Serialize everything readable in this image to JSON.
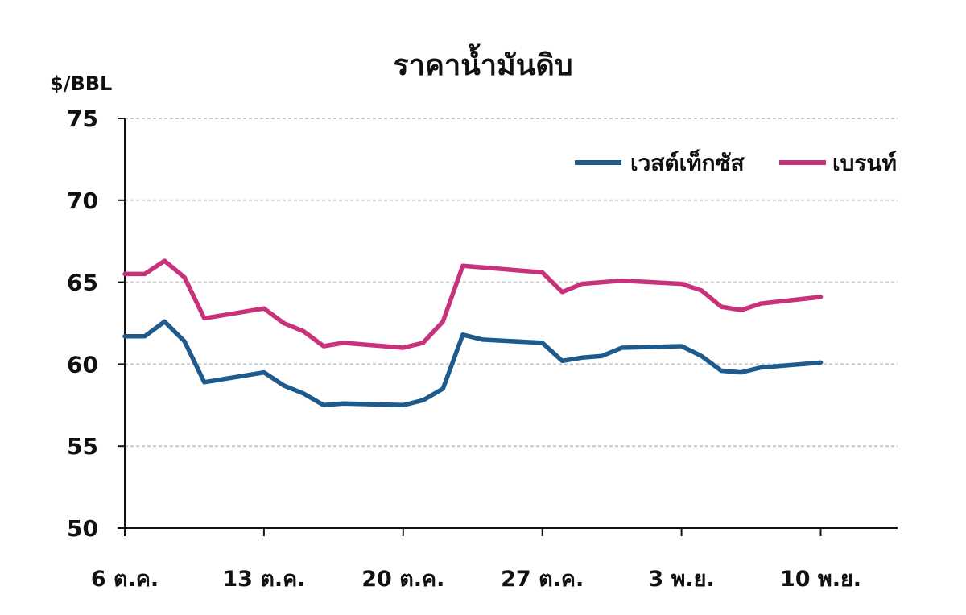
{
  "chart_data": {
    "type": "line",
    "title": "ราคาน้ำมันดิบ",
    "ylabel": "$/BBL",
    "xlabel": "",
    "ylim": [
      50,
      75
    ],
    "yticks": [
      75,
      70,
      65,
      60,
      55,
      50
    ],
    "xtick_labels": [
      "6 ต.ค.",
      "13 ต.ค.",
      "20 ต.ค.",
      "27 ต.ค.",
      "3 พ.ย.",
      "10 พ.ย."
    ],
    "xtick_days": [
      0,
      7,
      14,
      21,
      28,
      35
    ],
    "grid": true,
    "legend_position": "top-right",
    "x_days": [
      0,
      1,
      2,
      3,
      4,
      7,
      8,
      9,
      10,
      11,
      14,
      15,
      16,
      17,
      18,
      21,
      22,
      23,
      24,
      25,
      28,
      29,
      30,
      31,
      32,
      35
    ],
    "series": [
      {
        "name": "เวสต์เท็กซัส",
        "color": "#1f5a8c",
        "values": [
          61.7,
          61.7,
          62.6,
          61.4,
          58.9,
          59.5,
          58.7,
          58.2,
          57.5,
          57.6,
          57.5,
          57.8,
          58.5,
          61.8,
          61.5,
          61.3,
          60.2,
          60.4,
          60.5,
          61.0,
          61.1,
          60.5,
          59.6,
          59.5,
          59.8,
          60.1
        ]
      },
      {
        "name": "เบรนท์",
        "color": "#c8327a",
        "values": [
          65.5,
          65.5,
          66.3,
          65.3,
          62.8,
          63.4,
          62.5,
          62.0,
          61.1,
          61.3,
          61.0,
          61.3,
          62.6,
          66.0,
          65.9,
          65.6,
          64.4,
          64.9,
          65.0,
          65.1,
          64.9,
          64.5,
          63.5,
          63.3,
          63.7,
          64.1
        ]
      }
    ]
  }
}
